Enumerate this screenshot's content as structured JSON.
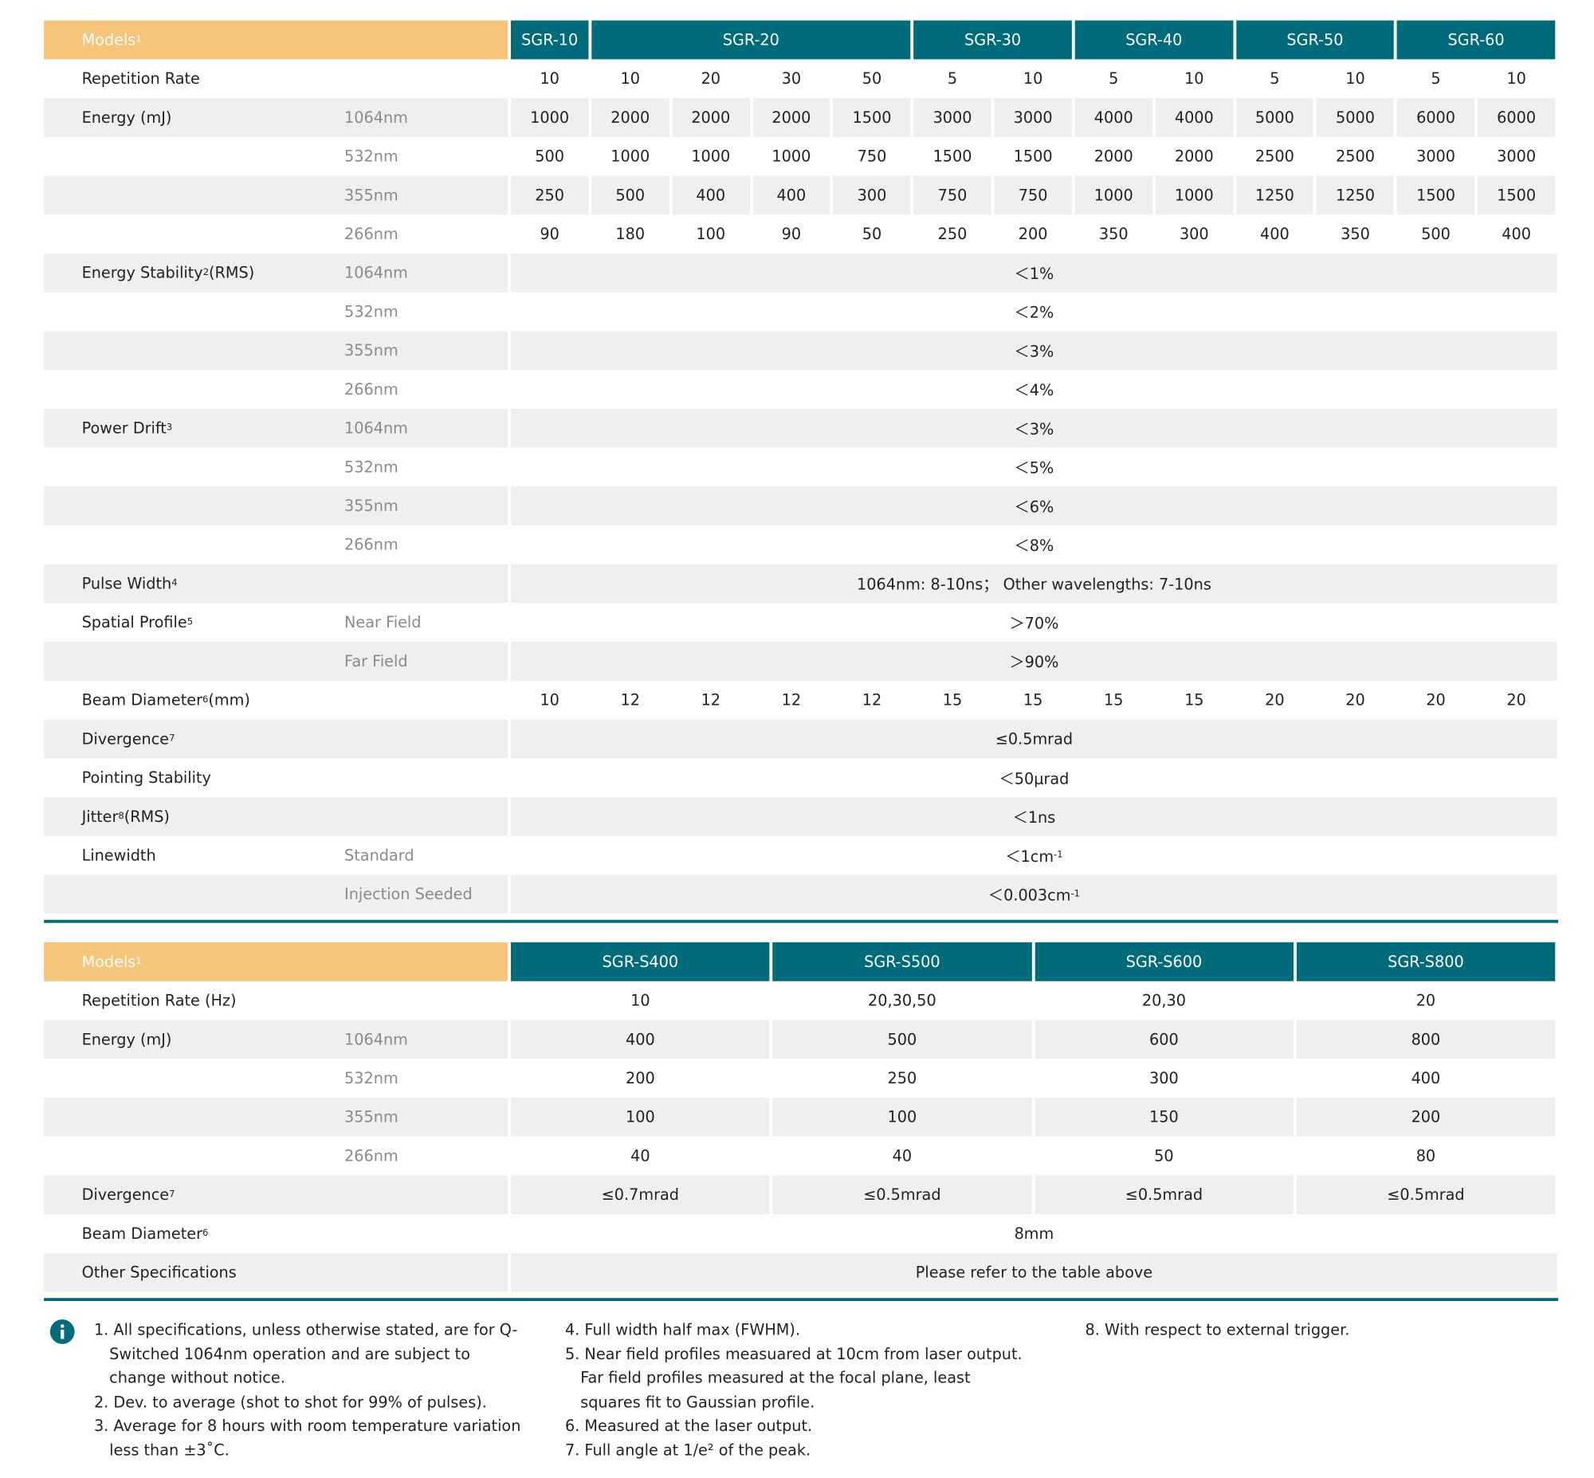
{
  "tables": [
    {
      "header": {
        "label": "Models",
        "sup": "1",
        "groups": [
          {
            "name": "SGR-10",
            "span": 1
          },
          {
            "name": "SGR-20",
            "span": 4
          },
          {
            "name": "SGR-30",
            "span": 2
          },
          {
            "name": "SGR-40",
            "span": 2
          },
          {
            "name": "SGR-50",
            "span": 2
          },
          {
            "name": "SGR-60",
            "span": 2
          }
        ]
      },
      "rows": [
        {
          "label": "Repetition Rate",
          "values": [
            10,
            10,
            20,
            30,
            50,
            5,
            10,
            5,
            10,
            5,
            10,
            5,
            10
          ]
        },
        {
          "label": "Energy (mJ)",
          "sub": "1064nm",
          "values": [
            1000,
            2000,
            2000,
            2000,
            1500,
            3000,
            3000,
            4000,
            4000,
            5000,
            5000,
            6000,
            6000
          ]
        },
        {
          "sub": "532nm",
          "values": [
            500,
            1000,
            1000,
            1000,
            750,
            1500,
            1500,
            2000,
            2000,
            2500,
            2500,
            3000,
            3000
          ]
        },
        {
          "sub": "355nm",
          "values": [
            250,
            500,
            400,
            400,
            300,
            750,
            750,
            1000,
            1000,
            1250,
            1250,
            1500,
            1500
          ]
        },
        {
          "sub": "266nm",
          "values": [
            90,
            180,
            100,
            90,
            50,
            250,
            200,
            350,
            300,
            400,
            350,
            500,
            400
          ]
        },
        {
          "label": "Energy Stability",
          "sup": "2",
          "suffix": "(RMS)",
          "sub": "1064nm",
          "value": "＜1%"
        },
        {
          "sub": "532nm",
          "value": "＜2%"
        },
        {
          "sub": "355nm",
          "value": "＜3%"
        },
        {
          "sub": "266nm",
          "value": "＜4%"
        },
        {
          "label": "Power Drift",
          "sup": "3",
          "sub": "1064nm",
          "value": "＜3%"
        },
        {
          "sub": "532nm",
          "value": "＜5%"
        },
        {
          "sub": "355nm",
          "value": "＜6%"
        },
        {
          "sub": "266nm",
          "value": "＜8%"
        },
        {
          "label": "Pulse Width",
          "sup": "4",
          "value": "1064nm: 8-10ns；  Other wavelengths: 7-10ns"
        },
        {
          "label": "Spatial Profile",
          "sup": "5",
          "sub": "Near Field",
          "value": "＞70%"
        },
        {
          "sub": "Far Field",
          "value": "＞90%"
        },
        {
          "label": "Beam Diameter",
          "sup": "6",
          "suffix": "(mm)",
          "values": [
            10,
            12,
            12,
            12,
            12,
            15,
            15,
            15,
            15,
            20,
            20,
            20,
            20
          ]
        },
        {
          "label": "Divergence",
          "sup": "7",
          "value": "≤0.5mrad"
        },
        {
          "label": "Pointing Stability",
          "value": "＜50μrad"
        },
        {
          "label": "Jitter",
          "sup": "8",
          "suffix": "(RMS)",
          "value": "＜1ns"
        },
        {
          "label": "Linewidth",
          "sub": "Standard",
          "value": "＜1cm",
          "value_sup": "-1"
        },
        {
          "sub": "Injection Seeded",
          "value": "＜0.003cm",
          "value_sup": "-1"
        }
      ]
    },
    {
      "header": {
        "label": "Models",
        "sup": "1",
        "groups": [
          {
            "name": "SGR-S400",
            "span": 1
          },
          {
            "name": "SGR-S500",
            "span": 1
          },
          {
            "name": "SGR-S600",
            "span": 1
          },
          {
            "name": "SGR-S800",
            "span": 1
          }
        ]
      },
      "rows": [
        {
          "label": "Repetition Rate (Hz)",
          "values": [
            10,
            "20,30,50",
            "20,30",
            20
          ]
        },
        {
          "label": "Energy (mJ)",
          "sub": "1064nm",
          "values": [
            400,
            500,
            600,
            800
          ]
        },
        {
          "sub": "532nm",
          "values": [
            200,
            250,
            300,
            400
          ]
        },
        {
          "sub": "355nm",
          "values": [
            100,
            100,
            150,
            200
          ]
        },
        {
          "sub": "266nm",
          "values": [
            40,
            40,
            50,
            80
          ]
        },
        {
          "label": "Divergence",
          "sup": "7",
          "values": [
            "≤0.7mrad",
            "≤0.5mrad",
            "≤0.5mrad",
            "≤0.5mrad"
          ]
        },
        {
          "label": "Beam Diameter",
          "sup": "6",
          "value": "8mm"
        },
        {
          "label": "Other Specifications",
          "value": "Please refer to the table above"
        }
      ]
    }
  ],
  "notes": [
    [
      "1. All specifications, unless otherwise stated, are for Q-Switched 1064nm operation and are subject to change without notice.",
      "2. Dev. to average (shot to shot for 99% of pulses).",
      "3. Average for 8 hours with room temperature variation less than ±3˚C."
    ],
    [
      "4. Full width half max (FWHM).",
      "5. Near field profiles measuared at 10cm from laser output. Far field profiles measured at the focal plane, least squares fit to Gaussian profile.",
      "6. Measured at the laser output.",
      "7. Full angle at 1/e² of the peak."
    ],
    [
      "8. With respect to external trigger."
    ]
  ]
}
